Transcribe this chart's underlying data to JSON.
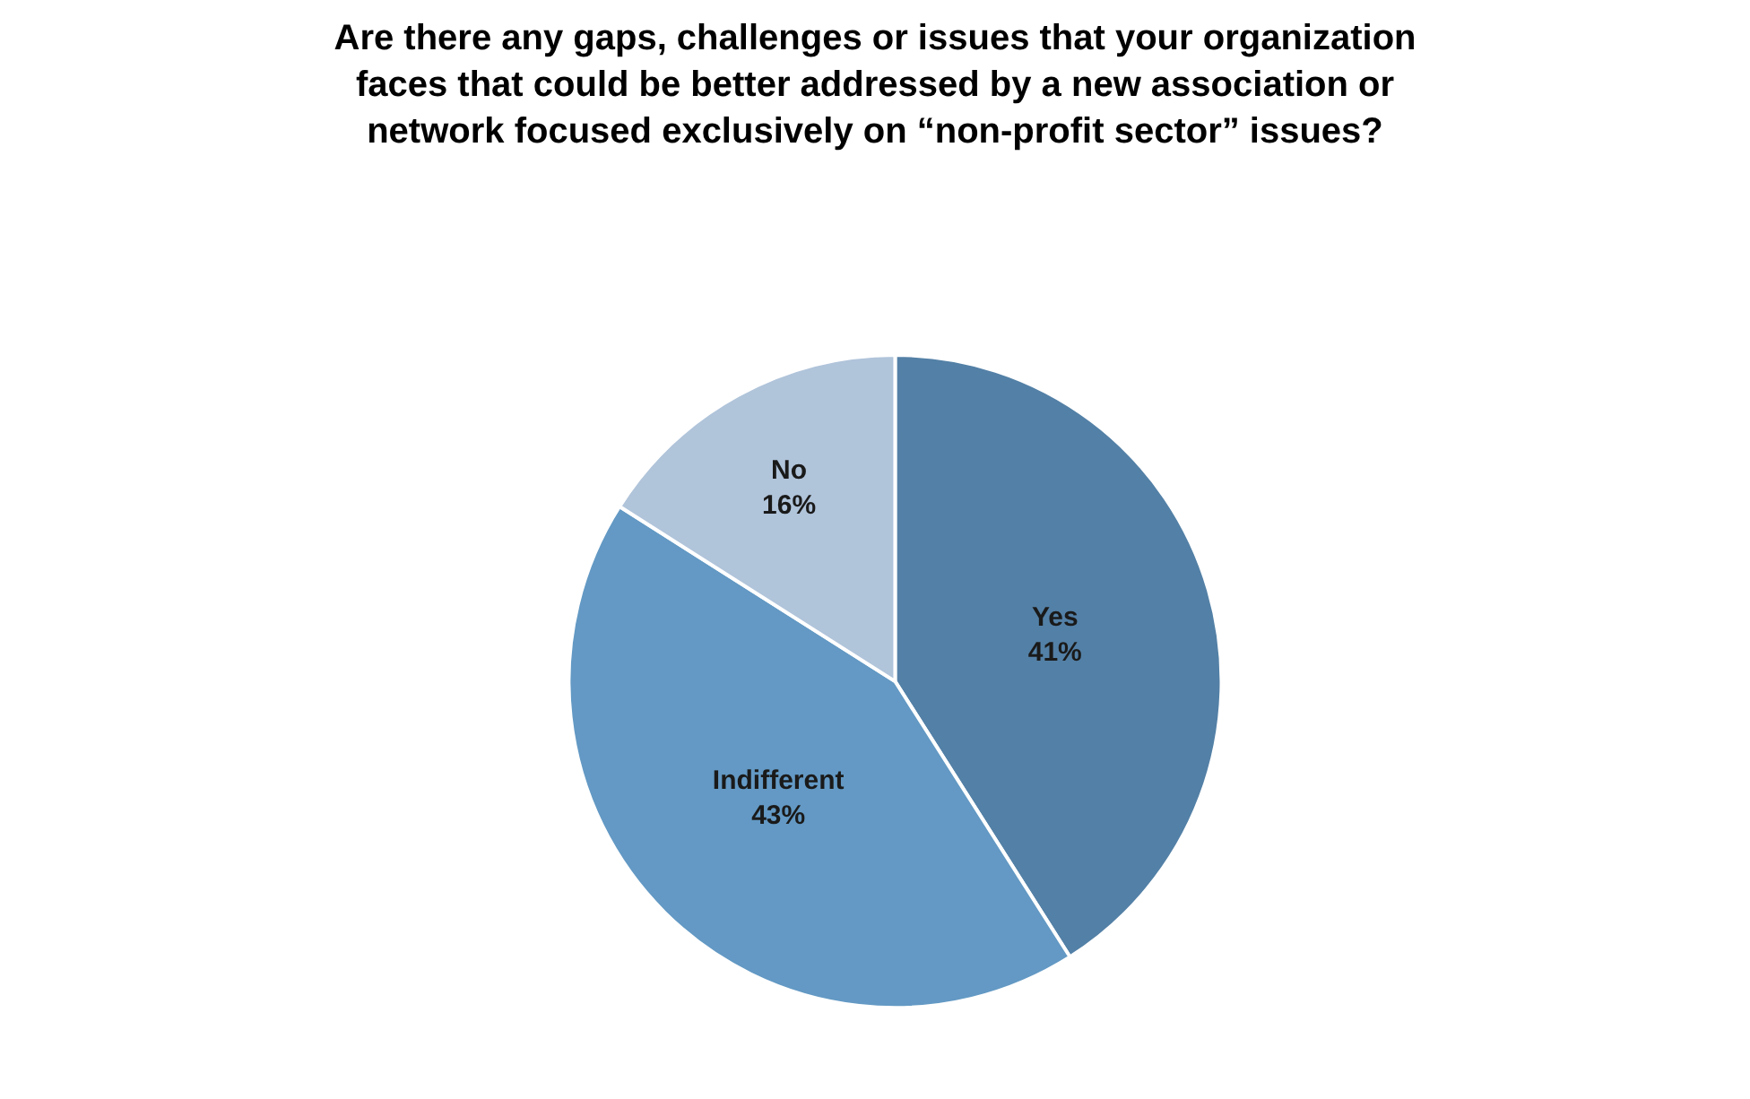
{
  "chart_data": {
    "type": "pie",
    "title": "Are there any gaps, challenges or issues that your organization\nfaces that could be better addressed by a new association or\nnetwork focused exclusively on “non-profit sector” issues?",
    "categories": [
      "Yes",
      "Indifferent",
      "No"
    ],
    "values": [
      41,
      43,
      16
    ],
    "value_labels": [
      "41%",
      "43%",
      "16%"
    ],
    "colors": [
      "#5380a6",
      "#6399c4",
      "#b0c4da"
    ],
    "legend": false
  }
}
